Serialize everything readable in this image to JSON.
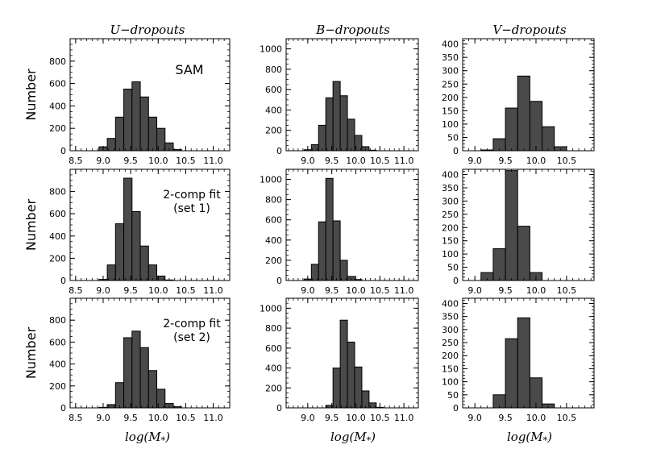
{
  "figure": {
    "col_titles": [
      "U−dropouts",
      "B−dropouts",
      "V−dropouts"
    ],
    "ylabel": "Number",
    "xlabel": "log(M",
    "xlabel_sub": "*",
    "xlabel_close": ")",
    "bar_color": "#4a4a4a",
    "edge_color": "#000000"
  },
  "chart_data": [
    {
      "type": "bar",
      "row": 0,
      "col": 0,
      "annotation": [
        "SAM"
      ],
      "xlim": [
        8.4,
        11.3
      ],
      "ylim": [
        0,
        1000
      ],
      "xticks": [
        "8.5",
        "9.0",
        "9.5",
        "10.0",
        "10.5",
        "11.0"
      ],
      "yticks": [
        "0",
        "200",
        "400",
        "600",
        "800"
      ],
      "bar_width": 0.15,
      "x": [
        9.0,
        9.15,
        9.3,
        9.45,
        9.6,
        9.75,
        9.9,
        10.05,
        10.2,
        10.35,
        10.5,
        10.65
      ],
      "values": [
        35,
        110,
        300,
        550,
        615,
        480,
        300,
        200,
        70,
        10,
        0,
        0
      ]
    },
    {
      "type": "bar",
      "row": 0,
      "col": 1,
      "annotation": [],
      "xlim": [
        8.55,
        11.3
      ],
      "ylim": [
        0,
        1100
      ],
      "xticks": [
        "9.0",
        "9.5",
        "10.0",
        "10.5",
        "11.0"
      ],
      "yticks": [
        "0",
        "200",
        "400",
        "600",
        "800",
        "1000"
      ],
      "bar_width": 0.15,
      "x": [
        9.0,
        9.15,
        9.3,
        9.45,
        9.6,
        9.75,
        9.9,
        10.05,
        10.2,
        10.35,
        10.5
      ],
      "values": [
        10,
        60,
        250,
        520,
        680,
        540,
        310,
        150,
        40,
        5,
        0
      ]
    },
    {
      "type": "bar",
      "row": 0,
      "col": 2,
      "annotation": [],
      "xlim": [
        8.8,
        10.95
      ],
      "ylim": [
        0,
        420
      ],
      "xticks": [
        "9.0",
        "9.5",
        "10.0",
        "10.5"
      ],
      "yticks": [
        "0",
        "50",
        "100",
        "150",
        "200",
        "250",
        "300",
        "350",
        "400"
      ],
      "bar_width": 0.2,
      "x": [
        9.0,
        9.2,
        9.4,
        9.6,
        9.8,
        10.0,
        10.2,
        10.4
      ],
      "values": [
        0,
        3,
        45,
        160,
        280,
        185,
        90,
        15
      ]
    },
    {
      "type": "bar",
      "row": 1,
      "col": 0,
      "annotation": [
        "2-comp fit",
        "(set 1)"
      ],
      "xlim": [
        8.4,
        11.3
      ],
      "ylim": [
        0,
        1000
      ],
      "xticks": [
        "8.5",
        "9.0",
        "9.5",
        "10.0",
        "10.5",
        "11.0"
      ],
      "yticks": [
        "0",
        "200",
        "400",
        "600",
        "800"
      ],
      "bar_width": 0.15,
      "x": [
        9.0,
        9.15,
        9.3,
        9.45,
        9.6,
        9.75,
        9.9,
        10.05,
        10.2,
        10.35
      ],
      "values": [
        10,
        140,
        510,
        920,
        620,
        310,
        140,
        40,
        5,
        0
      ]
    },
    {
      "type": "bar",
      "row": 1,
      "col": 1,
      "annotation": [],
      "xlim": [
        8.55,
        11.3
      ],
      "ylim": [
        0,
        1100
      ],
      "xticks": [
        "9.0",
        "9.5",
        "10.0",
        "10.5",
        "11.0"
      ],
      "yticks": [
        "0",
        "200",
        "400",
        "600",
        "800",
        "1000"
      ],
      "bar_width": 0.15,
      "x": [
        9.0,
        9.15,
        9.3,
        9.45,
        9.6,
        9.75,
        9.9,
        10.05,
        10.2,
        10.35
      ],
      "values": [
        15,
        160,
        580,
        1010,
        590,
        200,
        40,
        10,
        0,
        0
      ]
    },
    {
      "type": "bar",
      "row": 1,
      "col": 2,
      "annotation": [],
      "xlim": [
        8.8,
        10.95
      ],
      "ylim": [
        0,
        420
      ],
      "xticks": [
        "9.0",
        "9.5",
        "10.0",
        "10.5"
      ],
      "yticks": [
        "0",
        "50",
        "100",
        "150",
        "200",
        "250",
        "300",
        "350",
        "400"
      ],
      "bar_width": 0.2,
      "x": [
        9.2,
        9.4,
        9.6,
        9.8,
        10.0,
        10.2
      ],
      "values": [
        30,
        120,
        415,
        205,
        30,
        0
      ]
    },
    {
      "type": "bar",
      "row": 2,
      "col": 0,
      "annotation": [
        "2-comp fit",
        "(set 2)"
      ],
      "xlim": [
        8.4,
        11.3
      ],
      "ylim": [
        0,
        1000
      ],
      "xticks": [
        "8.5",
        "9.0",
        "9.5",
        "10.0",
        "10.5",
        "11.0"
      ],
      "yticks": [
        "0",
        "200",
        "400",
        "600",
        "800"
      ],
      "bar_width": 0.15,
      "x": [
        9.0,
        9.15,
        9.3,
        9.45,
        9.6,
        9.75,
        9.9,
        10.05,
        10.2,
        10.35,
        10.5,
        10.65
      ],
      "values": [
        5,
        30,
        230,
        640,
        700,
        550,
        340,
        170,
        40,
        10,
        0,
        0
      ]
    },
    {
      "type": "bar",
      "row": 2,
      "col": 1,
      "annotation": [],
      "xlim": [
        8.55,
        11.3
      ],
      "ylim": [
        0,
        1100
      ],
      "xticks": [
        "9.0",
        "9.5",
        "10.0",
        "10.5",
        "11.0"
      ],
      "yticks": [
        "0",
        "200",
        "400",
        "600",
        "800",
        "1000"
      ],
      "bar_width": 0.15,
      "x": [
        9.45,
        9.6,
        9.75,
        9.9,
        10.05,
        10.2,
        10.35,
        10.5
      ],
      "values": [
        25,
        400,
        880,
        660,
        410,
        170,
        50,
        5
      ]
    },
    {
      "type": "bar",
      "row": 2,
      "col": 2,
      "annotation": [],
      "xlim": [
        8.8,
        10.95
      ],
      "ylim": [
        0,
        420
      ],
      "xticks": [
        "9.0",
        "9.5",
        "10.0",
        "10.5"
      ],
      "yticks": [
        "0",
        "50",
        "100",
        "150",
        "200",
        "250",
        "300",
        "350",
        "400"
      ],
      "bar_width": 0.2,
      "x": [
        9.4,
        9.6,
        9.8,
        10.0,
        10.2
      ],
      "values": [
        50,
        265,
        345,
        115,
        15
      ]
    }
  ]
}
